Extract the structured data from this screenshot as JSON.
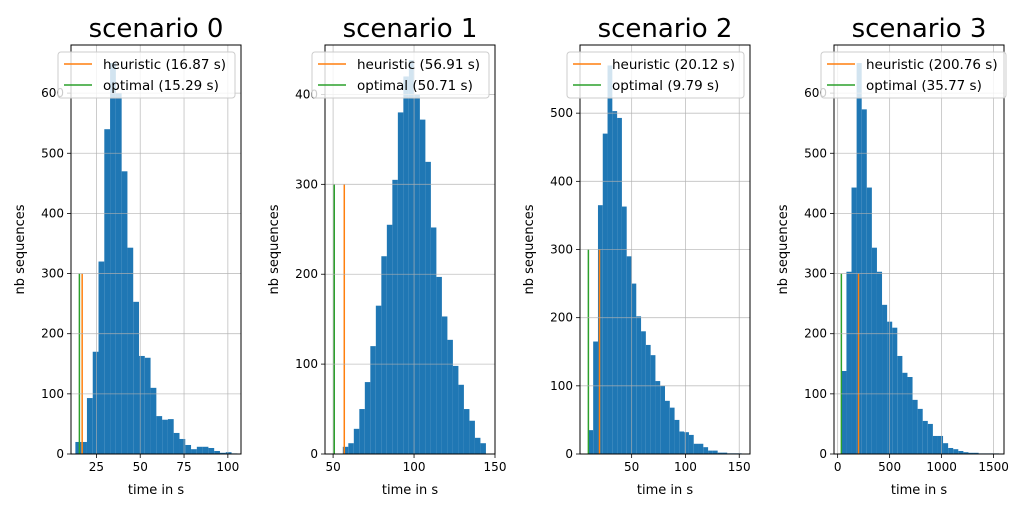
{
  "chart_data": [
    {
      "type": "bar",
      "title": "scenario 0",
      "xlabel": "time in s",
      "ylabel": "nb sequences",
      "xlim": [
        10.5,
        107.5
      ],
      "ylim": [
        0,
        680
      ],
      "xticks": [
        25,
        50,
        75,
        100
      ],
      "yticks": [
        0,
        100,
        200,
        300,
        400,
        500,
        600
      ],
      "bin_width": 3.3,
      "bins": [
        {
          "x0": 13.0,
          "h": 20
        },
        {
          "x0": 16.3,
          "h": 20
        },
        {
          "x0": 19.6,
          "h": 93
        },
        {
          "x0": 22.9,
          "h": 170
        },
        {
          "x0": 26.2,
          "h": 320
        },
        {
          "x0": 29.5,
          "h": 540
        },
        {
          "x0": 32.8,
          "h": 650
        },
        {
          "x0": 36.1,
          "h": 600
        },
        {
          "x0": 39.4,
          "h": 470
        },
        {
          "x0": 42.7,
          "h": 343
        },
        {
          "x0": 46.0,
          "h": 253
        },
        {
          "x0": 49.3,
          "h": 163
        },
        {
          "x0": 52.6,
          "h": 160
        },
        {
          "x0": 55.9,
          "h": 110
        },
        {
          "x0": 59.2,
          "h": 63
        },
        {
          "x0": 62.5,
          "h": 57
        },
        {
          "x0": 65.8,
          "h": 58
        },
        {
          "x0": 69.1,
          "h": 35
        },
        {
          "x0": 72.4,
          "h": 25
        },
        {
          "x0": 75.7,
          "h": 15
        },
        {
          "x0": 79.0,
          "h": 8
        },
        {
          "x0": 82.3,
          "h": 12
        },
        {
          "x0": 85.6,
          "h": 12
        },
        {
          "x0": 88.9,
          "h": 10
        },
        {
          "x0": 92.2,
          "h": 5
        },
        {
          "x0": 95.5,
          "h": 2
        },
        {
          "x0": 98.8,
          "h": 3
        },
        {
          "x0": 102.1,
          "h": 1
        }
      ],
      "vlines": [
        {
          "label": "heuristic (16.87 s)",
          "x": 16.87,
          "height": 300,
          "color": "#ff7f0e"
        },
        {
          "label": "optimal (15.29 s)",
          "x": 15.29,
          "height": 300,
          "color": "#2ca02c"
        }
      ]
    },
    {
      "type": "bar",
      "title": "scenario 1",
      "xlabel": "time in s",
      "ylabel": "nb sequences",
      "xlim": [
        45,
        150
      ],
      "ylim": [
        0,
        455
      ],
      "xticks": [
        50,
        100,
        150
      ],
      "yticks": [
        0,
        100,
        200,
        300,
        400
      ],
      "bin_width": 3.4,
      "bins": [
        {
          "x0": 56.0,
          "h": 8
        },
        {
          "x0": 59.4,
          "h": 12
        },
        {
          "x0": 62.8,
          "h": 28
        },
        {
          "x0": 66.2,
          "h": 50
        },
        {
          "x0": 69.6,
          "h": 80
        },
        {
          "x0": 73.0,
          "h": 120
        },
        {
          "x0": 76.4,
          "h": 165
        },
        {
          "x0": 79.8,
          "h": 220
        },
        {
          "x0": 83.2,
          "h": 255
        },
        {
          "x0": 86.6,
          "h": 305
        },
        {
          "x0": 90.0,
          "h": 380
        },
        {
          "x0": 93.4,
          "h": 420
        },
        {
          "x0": 96.8,
          "h": 438
        },
        {
          "x0": 100.2,
          "h": 400
        },
        {
          "x0": 103.6,
          "h": 372
        },
        {
          "x0": 107.0,
          "h": 325
        },
        {
          "x0": 110.4,
          "h": 252
        },
        {
          "x0": 113.8,
          "h": 197
        },
        {
          "x0": 117.2,
          "h": 153
        },
        {
          "x0": 120.6,
          "h": 127
        },
        {
          "x0": 124.0,
          "h": 98
        },
        {
          "x0": 127.4,
          "h": 77
        },
        {
          "x0": 130.8,
          "h": 50
        },
        {
          "x0": 134.2,
          "h": 37
        },
        {
          "x0": 137.6,
          "h": 18
        },
        {
          "x0": 141.0,
          "h": 12
        }
      ],
      "vlines": [
        {
          "label": "heuristic (56.91 s)",
          "x": 56.91,
          "height": 300,
          "color": "#ff7f0e"
        },
        {
          "label": "optimal (50.71 s)",
          "x": 50.71,
          "height": 300,
          "color": "#2ca02c"
        }
      ]
    },
    {
      "type": "bar",
      "title": "scenario 2",
      "xlabel": "time in s",
      "ylabel": "nb sequences",
      "xlim": [
        2,
        160
      ],
      "ylim": [
        0,
        600
      ],
      "xticks": [
        50,
        100,
        150
      ],
      "yticks": [
        0,
        100,
        200,
        300,
        400,
        500
      ],
      "bin_width": 4.45,
      "bins": [
        {
          "x0": 9.8,
          "h": 35
        },
        {
          "x0": 14.25,
          "h": 165
        },
        {
          "x0": 18.7,
          "h": 365
        },
        {
          "x0": 23.15,
          "h": 470
        },
        {
          "x0": 27.6,
          "h": 570
        },
        {
          "x0": 32.05,
          "h": 503
        },
        {
          "x0": 36.5,
          "h": 493
        },
        {
          "x0": 40.95,
          "h": 363
        },
        {
          "x0": 45.4,
          "h": 290
        },
        {
          "x0": 49.85,
          "h": 250
        },
        {
          "x0": 54.3,
          "h": 202
        },
        {
          "x0": 58.75,
          "h": 180
        },
        {
          "x0": 63.2,
          "h": 160
        },
        {
          "x0": 67.65,
          "h": 145
        },
        {
          "x0": 72.1,
          "h": 107
        },
        {
          "x0": 76.55,
          "h": 100
        },
        {
          "x0": 81.0,
          "h": 78
        },
        {
          "x0": 85.45,
          "h": 68
        },
        {
          "x0": 89.9,
          "h": 50
        },
        {
          "x0": 94.35,
          "h": 33
        },
        {
          "x0": 98.8,
          "h": 32
        },
        {
          "x0": 103.25,
          "h": 28
        },
        {
          "x0": 107.7,
          "h": 15
        },
        {
          "x0": 112.15,
          "h": 15
        },
        {
          "x0": 116.6,
          "h": 10
        },
        {
          "x0": 121.05,
          "h": 5
        },
        {
          "x0": 125.5,
          "h": 5
        },
        {
          "x0": 129.95,
          "h": 2
        },
        {
          "x0": 134.4,
          "h": 2
        },
        {
          "x0": 138.85,
          "h": 1
        },
        {
          "x0": 143.3,
          "h": 1
        },
        {
          "x0": 147.75,
          "h": 1
        }
      ],
      "vlines": [
        {
          "label": "heuristic (20.12 s)",
          "x": 20.12,
          "height": 300,
          "color": "#ff7f0e"
        },
        {
          "label": "optimal (9.79 s)",
          "x": 9.79,
          "height": 300,
          "color": "#2ca02c"
        }
      ]
    },
    {
      "type": "bar",
      "title": "scenario 3",
      "xlabel": "time in s",
      "ylabel": "nb sequences",
      "xlim": [
        -35,
        1600
      ],
      "ylim": [
        0,
        680
      ],
      "xticks": [
        0,
        500,
        1000,
        1500
      ],
      "yticks": [
        0,
        100,
        200,
        300,
        400,
        500,
        600
      ],
      "bin_width": 48.9,
      "bins": [
        {
          "x0": 35.77,
          "h": 138
        },
        {
          "x0": 84.67,
          "h": 303
        },
        {
          "x0": 133.57,
          "h": 443
        },
        {
          "x0": 182.47,
          "h": 650
        },
        {
          "x0": 231.37,
          "h": 573
        },
        {
          "x0": 280.27,
          "h": 443
        },
        {
          "x0": 329.17,
          "h": 343
        },
        {
          "x0": 378.07,
          "h": 303
        },
        {
          "x0": 426.97,
          "h": 248
        },
        {
          "x0": 475.87,
          "h": 220
        },
        {
          "x0": 524.77,
          "h": 210
        },
        {
          "x0": 573.67,
          "h": 163
        },
        {
          "x0": 622.57,
          "h": 135
        },
        {
          "x0": 671.47,
          "h": 128
        },
        {
          "x0": 720.37,
          "h": 90
        },
        {
          "x0": 769.27,
          "h": 75
        },
        {
          "x0": 818.17,
          "h": 55
        },
        {
          "x0": 867.07,
          "h": 50
        },
        {
          "x0": 915.97,
          "h": 30
        },
        {
          "x0": 964.87,
          "h": 30
        },
        {
          "x0": 1013.77,
          "h": 18
        },
        {
          "x0": 1062.67,
          "h": 10
        },
        {
          "x0": 1111.57,
          "h": 8
        },
        {
          "x0": 1160.47,
          "h": 5
        },
        {
          "x0": 1209.37,
          "h": 3
        },
        {
          "x0": 1258.27,
          "h": 2
        },
        {
          "x0": 1307.17,
          "h": 2
        },
        {
          "x0": 1356.07,
          "h": 1
        },
        {
          "x0": 1404.97,
          "h": 1
        },
        {
          "x0": 1453.87,
          "h": 1
        },
        {
          "x0": 1502.77,
          "h": 1
        }
      ],
      "vlines": [
        {
          "label": "heuristic (200.76 s)",
          "x": 200.76,
          "height": 300,
          "color": "#ff7f0e"
        },
        {
          "label": "optimal (35.77 s)",
          "x": 35.77,
          "height": 300,
          "color": "#2ca02c"
        }
      ]
    }
  ],
  "colors": {
    "bar": "#1f77b4",
    "grid": "#b0b0b0",
    "heuristic": "#ff7f0e",
    "optimal": "#2ca02c"
  }
}
